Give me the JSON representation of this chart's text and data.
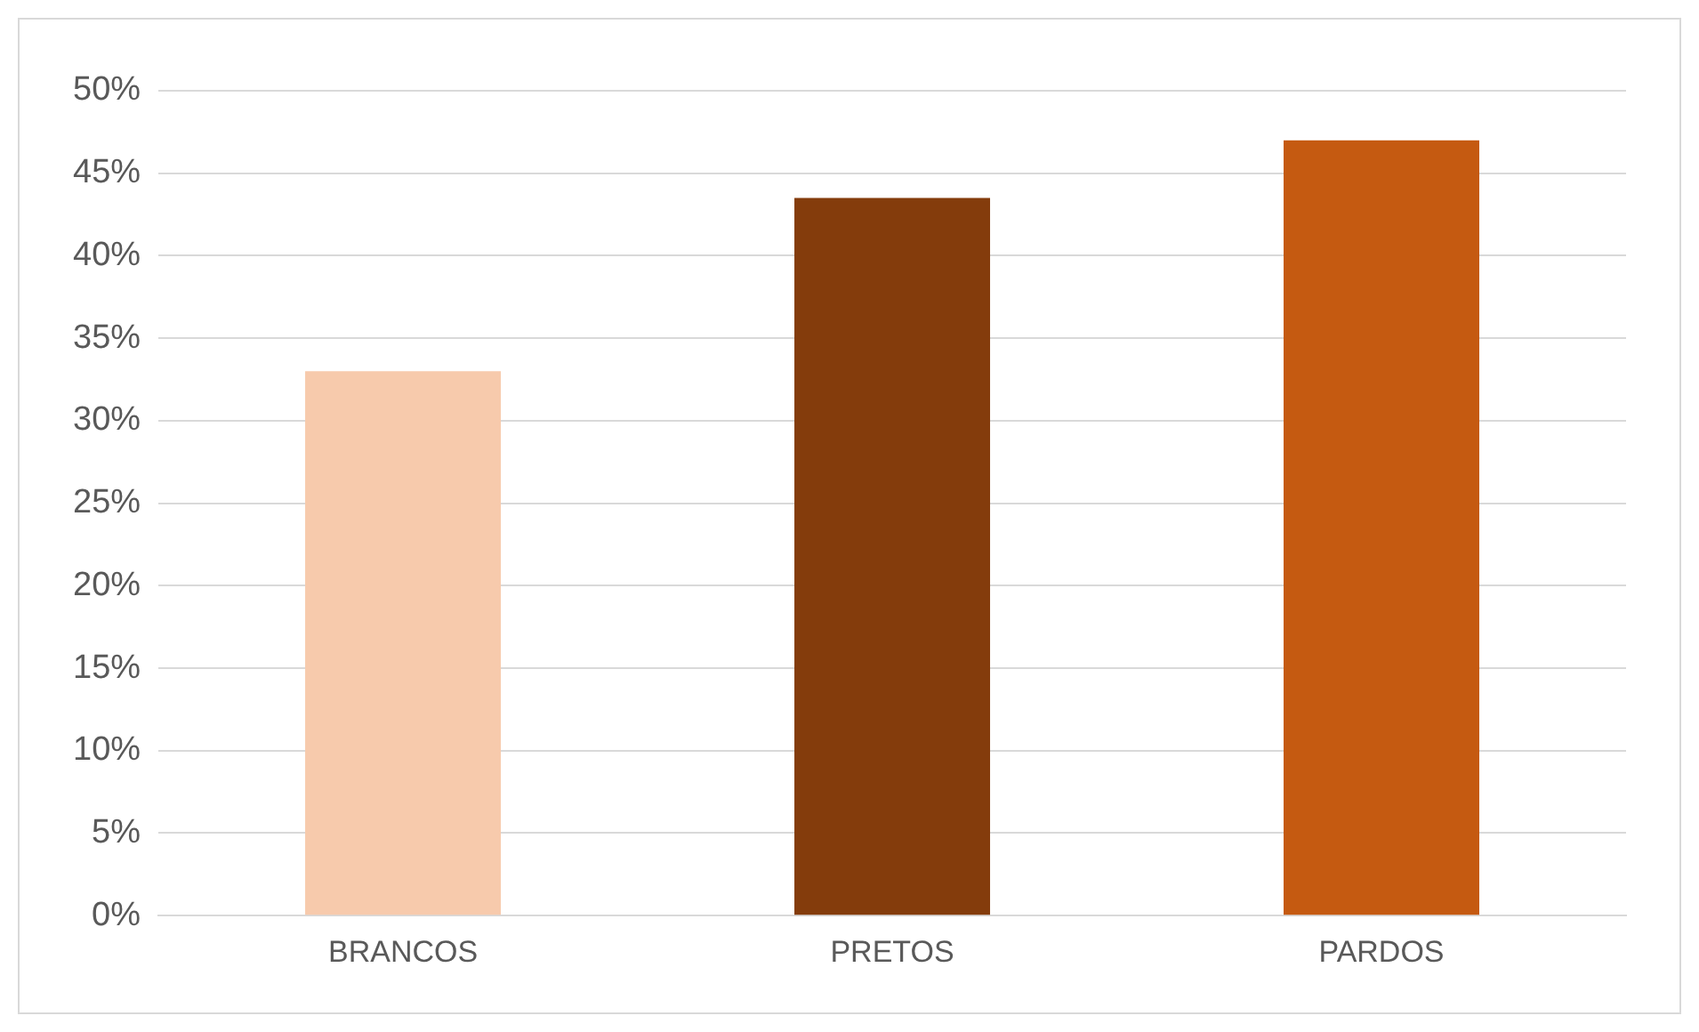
{
  "chart_data": {
    "type": "bar",
    "categories": [
      "BRANCOS",
      "PRETOS",
      "PARDOS"
    ],
    "values": [
      33,
      43.5,
      47
    ],
    "colors": [
      "#f7caac",
      "#843c0c",
      "#c55a11"
    ],
    "ylim": [
      0,
      50
    ],
    "yticks": [
      {
        "value": 0,
        "label": "0%"
      },
      {
        "value": 5,
        "label": "5%"
      },
      {
        "value": 10,
        "label": "10%"
      },
      {
        "value": 15,
        "label": "15%"
      },
      {
        "value": 20,
        "label": "20%"
      },
      {
        "value": 25,
        "label": "25%"
      },
      {
        "value": 30,
        "label": "30%"
      },
      {
        "value": 35,
        "label": "35%"
      },
      {
        "value": 40,
        "label": "40%"
      },
      {
        "value": 45,
        "label": "45%"
      },
      {
        "value": 50,
        "label": "50%"
      }
    ],
    "grid": "y",
    "legend": false
  }
}
